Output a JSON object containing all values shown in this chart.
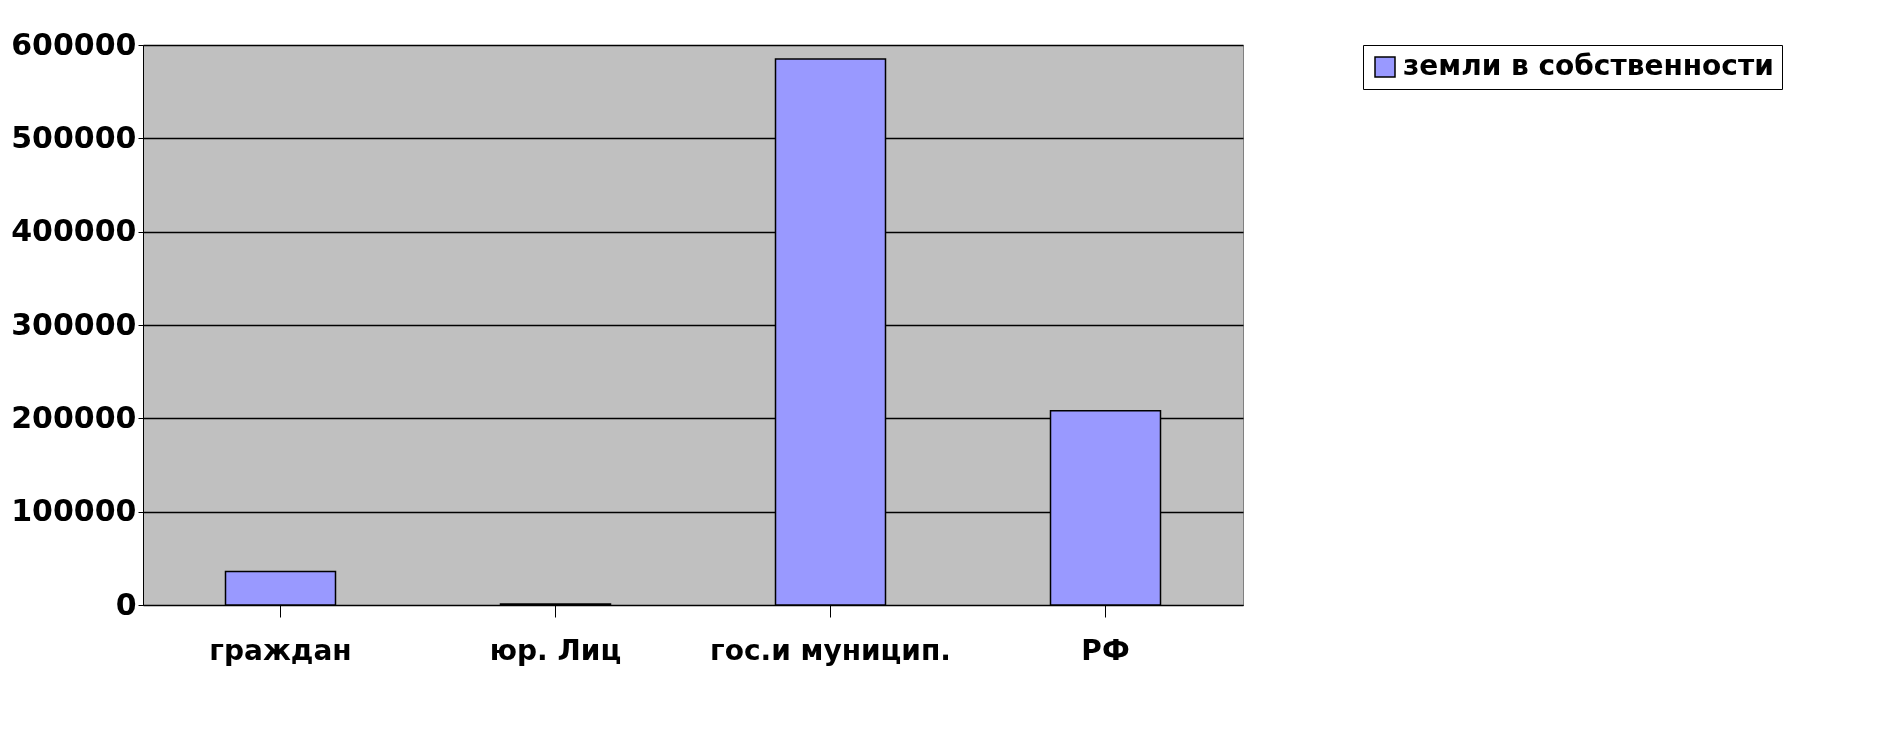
{
  "chart_data": {
    "type": "bar",
    "categories": [
      "граждан",
      "юр. Лиц",
      "гос.и муницип.",
      "РФ"
    ],
    "series": [
      {
        "name": "земли в собственности",
        "color": "#9999ff",
        "values": [
          36000,
          1000,
          585000,
          208000
        ]
      }
    ],
    "ylim": [
      0,
      600000
    ],
    "yticks": [
      0,
      100000,
      200000,
      300000,
      400000,
      500000,
      600000
    ],
    "grid": "y",
    "legend": "right"
  }
}
